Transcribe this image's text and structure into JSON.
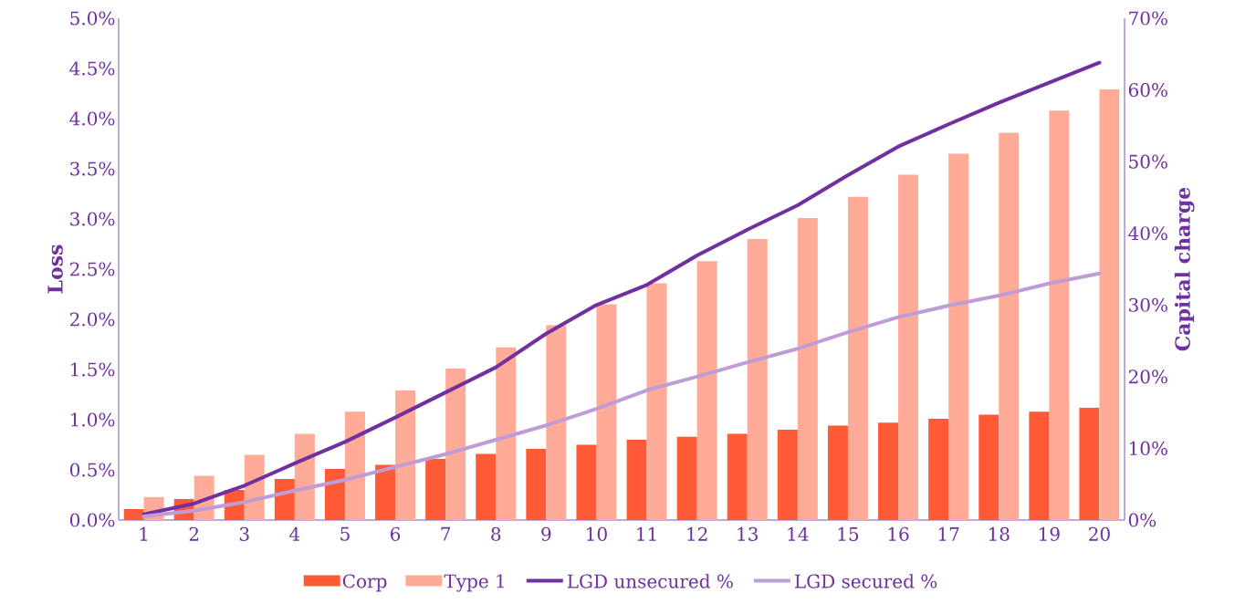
{
  "chart_data": {
    "type": "bar",
    "ylabel": "Loss",
    "y2label": "Capital charge",
    "legend": "bottom",
    "grid": false,
    "categories": [
      "1",
      "2",
      "3",
      "4",
      "5",
      "6",
      "7",
      "8",
      "9",
      "10",
      "11",
      "12",
      "13",
      "14",
      "15",
      "16",
      "17",
      "18",
      "19",
      "20"
    ],
    "ylim": [
      0,
      5
    ],
    "yticks": [
      {
        "value": 0,
        "label": "0.0%"
      },
      {
        "value": 0.5,
        "label": "0.5%"
      },
      {
        "value": 1,
        "label": "1.0%"
      },
      {
        "value": 1.5,
        "label": "1.5%"
      },
      {
        "value": 2,
        "label": "2.0%"
      },
      {
        "value": 2.5,
        "label": "2.5%"
      },
      {
        "value": 3,
        "label": "3.0%"
      },
      {
        "value": 3.5,
        "label": "3.5%"
      },
      {
        "value": 4,
        "label": "4.0%"
      },
      {
        "value": 4.5,
        "label": "4.5%"
      },
      {
        "value": 5,
        "label": "5.0%"
      }
    ],
    "y2lim": [
      0,
      70
    ],
    "y2ticks": [
      {
        "value": 0,
        "label": "0%"
      },
      {
        "value": 10,
        "label": "10%"
      },
      {
        "value": 20,
        "label": "20%"
      },
      {
        "value": 30,
        "label": "30%"
      },
      {
        "value": 40,
        "label": "40%"
      },
      {
        "value": 50,
        "label": "50%"
      },
      {
        "value": 60,
        "label": "60%"
      },
      {
        "value": 70,
        "label": "70%"
      }
    ],
    "series": [
      {
        "name": "Corp",
        "color": "#ff5a36",
        "values": [
          0.11,
          0.21,
          0.3,
          0.41,
          0.51,
          0.55,
          0.61,
          0.66,
          0.71,
          0.75,
          0.8,
          0.83,
          0.86,
          0.9,
          0.94,
          0.97,
          1.01,
          1.05,
          1.08,
          1.12
        ]
      },
      {
        "name": "Type 1",
        "color": "#ffab98",
        "values": [
          0.23,
          0.44,
          0.65,
          0.86,
          1.08,
          1.29,
          1.51,
          1.72,
          1.94,
          2.15,
          2.36,
          2.58,
          2.8,
          3.01,
          3.22,
          3.44,
          3.65,
          3.86,
          4.08,
          4.29
        ]
      },
      {
        "name": "LGD unsecured %",
        "type": "line",
        "axis": "y2",
        "color": "#7030a0",
        "values": [
          0.8,
          2.3,
          4.8,
          7.9,
          10.9,
          14.3,
          17.8,
          21.3,
          26,
          30,
          32.8,
          36.9,
          40.5,
          43.9,
          48.1,
          52.1,
          55.2,
          58.2,
          61,
          63.8
        ]
      },
      {
        "name": "LGD secured %",
        "type": "line",
        "axis": "y2",
        "color": "#bf9cd5",
        "values": [
          0.5,
          1.3,
          2.5,
          4.1,
          5.6,
          7.4,
          9.2,
          11.2,
          13.2,
          15.5,
          18.1,
          20,
          22,
          23.9,
          26.2,
          28.3,
          29.9,
          31.3,
          33,
          34.4
        ]
      }
    ]
  }
}
